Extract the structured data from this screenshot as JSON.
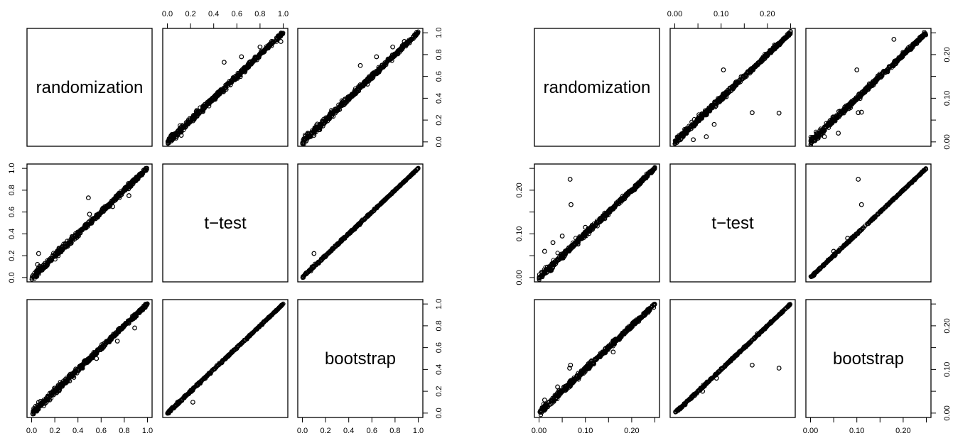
{
  "chart_data": [
    {
      "type": "scatter",
      "subtype": "pairs-matrix",
      "variables": [
        "randomization",
        "t−test",
        "bootstrap"
      ],
      "axis_range": [
        0,
        1
      ],
      "ticks": [
        0.0,
        0.2,
        0.4,
        0.6,
        0.8,
        1.0
      ],
      "tick_labels": [
        "0.0",
        "0.2",
        "0.4",
        "0.6",
        "0.8",
        "1.0"
      ],
      "grid": false,
      "point_style": "open-circle",
      "pairs": [
        {
          "x_var": "t−test",
          "y_var": "randomization",
          "trend": "y≈x, dense",
          "outliers": [
            [
              0.08,
              0.05
            ],
            [
              0.12,
              0.06
            ],
            [
              0.49,
              0.73
            ],
            [
              0.64,
              0.78
            ],
            [
              0.8,
              0.87
            ],
            [
              0.9,
              0.92
            ],
            [
              0.98,
              0.92
            ]
          ]
        },
        {
          "x_var": "bootstrap",
          "y_var": "randomization",
          "trend": "y≈x, dense",
          "outliers": [
            [
              0.1,
              0.06
            ],
            [
              0.64,
              0.78
            ],
            [
              0.78,
              0.87
            ],
            [
              0.88,
              0.92
            ],
            [
              0.5,
              0.7
            ]
          ]
        },
        {
          "x_var": "randomization",
          "y_var": "t−test",
          "trend": "y≈x, dense",
          "outliers": [
            [
              0.05,
              0.12
            ],
            [
              0.06,
              0.22
            ],
            [
              0.49,
              0.73
            ],
            [
              0.7,
              0.65
            ],
            [
              0.84,
              0.75
            ],
            [
              0.92,
              0.92
            ],
            [
              0.5,
              0.58
            ]
          ]
        },
        {
          "x_var": "bootstrap",
          "y_var": "t−test",
          "trend": "y=x, tight",
          "outliers": [
            [
              0.1,
              0.22
            ]
          ]
        },
        {
          "x_var": "randomization",
          "y_var": "bootstrap",
          "trend": "y≈x, dense",
          "outliers": [
            [
              0.06,
              0.1
            ],
            [
              0.56,
              0.5
            ],
            [
              0.74,
              0.66
            ],
            [
              0.89,
              0.78
            ],
            [
              0.93,
              0.92
            ]
          ]
        },
        {
          "x_var": "t−test",
          "y_var": "bootstrap",
          "trend": "y=x, tight",
          "outliers": [
            [
              0.22,
              0.1
            ],
            [
              0.5,
              0.5
            ]
          ]
        }
      ]
    },
    {
      "type": "scatter",
      "subtype": "pairs-matrix",
      "variables": [
        "randomization",
        "t−test",
        "bootstrap"
      ],
      "axis_range": [
        0,
        0.25
      ],
      "ticks": [
        0.0,
        0.05,
        0.1,
        0.15,
        0.2,
        0.25
      ],
      "tick_labels": [
        "0.00",
        "",
        "0.10",
        "",
        "0.20",
        ""
      ],
      "grid": false,
      "point_style": "open-circle",
      "pairs": [
        {
          "x_var": "t−test",
          "y_var": "randomization",
          "trend": "y≈x, dense",
          "outliers": [
            [
              0.167,
              0.067
            ],
            [
              0.225,
              0.066
            ],
            [
              0.068,
              0.012
            ],
            [
              0.04,
              0.005
            ],
            [
              0.085,
              0.04
            ],
            [
              0.105,
              0.165
            ]
          ]
        },
        {
          "x_var": "bootstrap",
          "y_var": "randomization",
          "trend": "y≈x, dense",
          "outliers": [
            [
              0.103,
              0.067
            ],
            [
              0.11,
              0.068
            ],
            [
              0.03,
              0.012
            ],
            [
              0.06,
              0.02
            ],
            [
              0.1,
              0.165
            ],
            [
              0.18,
              0.235
            ]
          ]
        },
        {
          "x_var": "randomization",
          "y_var": "t−test",
          "trend": "y≈x, dense",
          "outliers": [
            [
              0.067,
              0.225
            ],
            [
              0.069,
              0.167
            ],
            [
              0.03,
              0.08
            ],
            [
              0.012,
              0.06
            ],
            [
              0.05,
              0.095
            ],
            [
              0.1,
              0.115
            ]
          ]
        },
        {
          "x_var": "bootstrap",
          "y_var": "t−test",
          "trend": "y≈x, tight",
          "outliers": [
            [
              0.103,
              0.225
            ],
            [
              0.11,
              0.167
            ],
            [
              0.05,
              0.06
            ],
            [
              0.08,
              0.09
            ]
          ]
        },
        {
          "x_var": "randomization",
          "y_var": "bootstrap",
          "trend": "y≈x, dense",
          "outliers": [
            [
              0.066,
              0.103
            ],
            [
              0.068,
              0.11
            ],
            [
              0.012,
              0.03
            ],
            [
              0.04,
              0.06
            ],
            [
              0.16,
              0.14
            ]
          ]
        },
        {
          "x_var": "t−test",
          "y_var": "bootstrap",
          "trend": "y≈x, tight",
          "outliers": [
            [
              0.167,
              0.11
            ],
            [
              0.225,
              0.103
            ],
            [
              0.06,
              0.05
            ],
            [
              0.09,
              0.08
            ]
          ]
        }
      ]
    }
  ]
}
